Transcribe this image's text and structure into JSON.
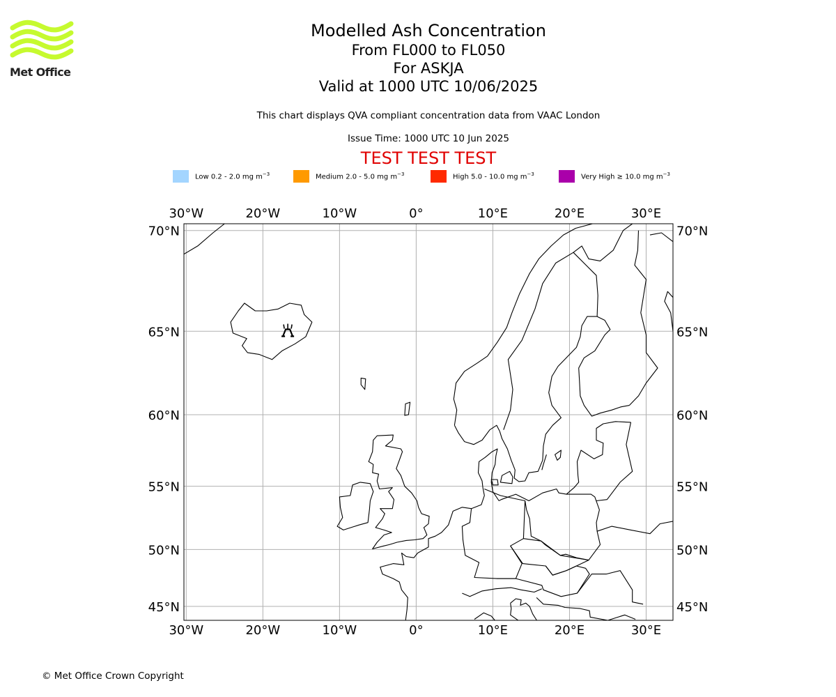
{
  "logo": {
    "name": "Met Office",
    "color": "#c6fa2f"
  },
  "title": {
    "line1": "Modelled Ash Concentration",
    "line2": "From FL000 to FL050",
    "line3": "For ASKJA",
    "line4": "Valid at 1000 UTC 10/06/2025"
  },
  "subtitle": "This chart displays QVA compliant concentration data from VAAC London",
  "issue_time": "Issue Time: 1000 UTC 10 Jun 2025",
  "test_banner": {
    "text": "TEST TEST TEST",
    "color": "#e00000"
  },
  "legend": [
    {
      "name": "Low",
      "range": "0.2 - 2.0 mg m",
      "prefix": "",
      "color": "#a3d5ff"
    },
    {
      "name": "Medium",
      "range": "2.0 - 5.0 mg m",
      "prefix": "",
      "color": "#ff9a00"
    },
    {
      "name": "High",
      "range": "5.0 - 10.0 mg m",
      "prefix": "",
      "color": "#ff2a00"
    },
    {
      "name": "Very High",
      "range": "10.0 mg m",
      "prefix": "≥",
      "color": "#aa00aa"
    }
  ],
  "legend_unit_exponent": "−3",
  "map": {
    "projection": "Mercator",
    "lon_range": [
      -30.3,
      33.5
    ],
    "lat_range": [
      43.7,
      70.3
    ],
    "lon_ticks": [
      "30°W",
      "20°W",
      "10°W",
      "0°",
      "10°E",
      "20°E",
      "30°E"
    ],
    "lat_ticks": [
      "70°N",
      "65°N",
      "60°N",
      "55°N",
      "50°N",
      "45°N"
    ],
    "gridlines": true,
    "gridline_color": "#b0b0b0",
    "volcano": {
      "name": "ASKJA",
      "lat": 65.03,
      "lon": -16.75,
      "icon": "volcano-icon"
    }
  },
  "footer": "© Met Office Crown Copyright"
}
